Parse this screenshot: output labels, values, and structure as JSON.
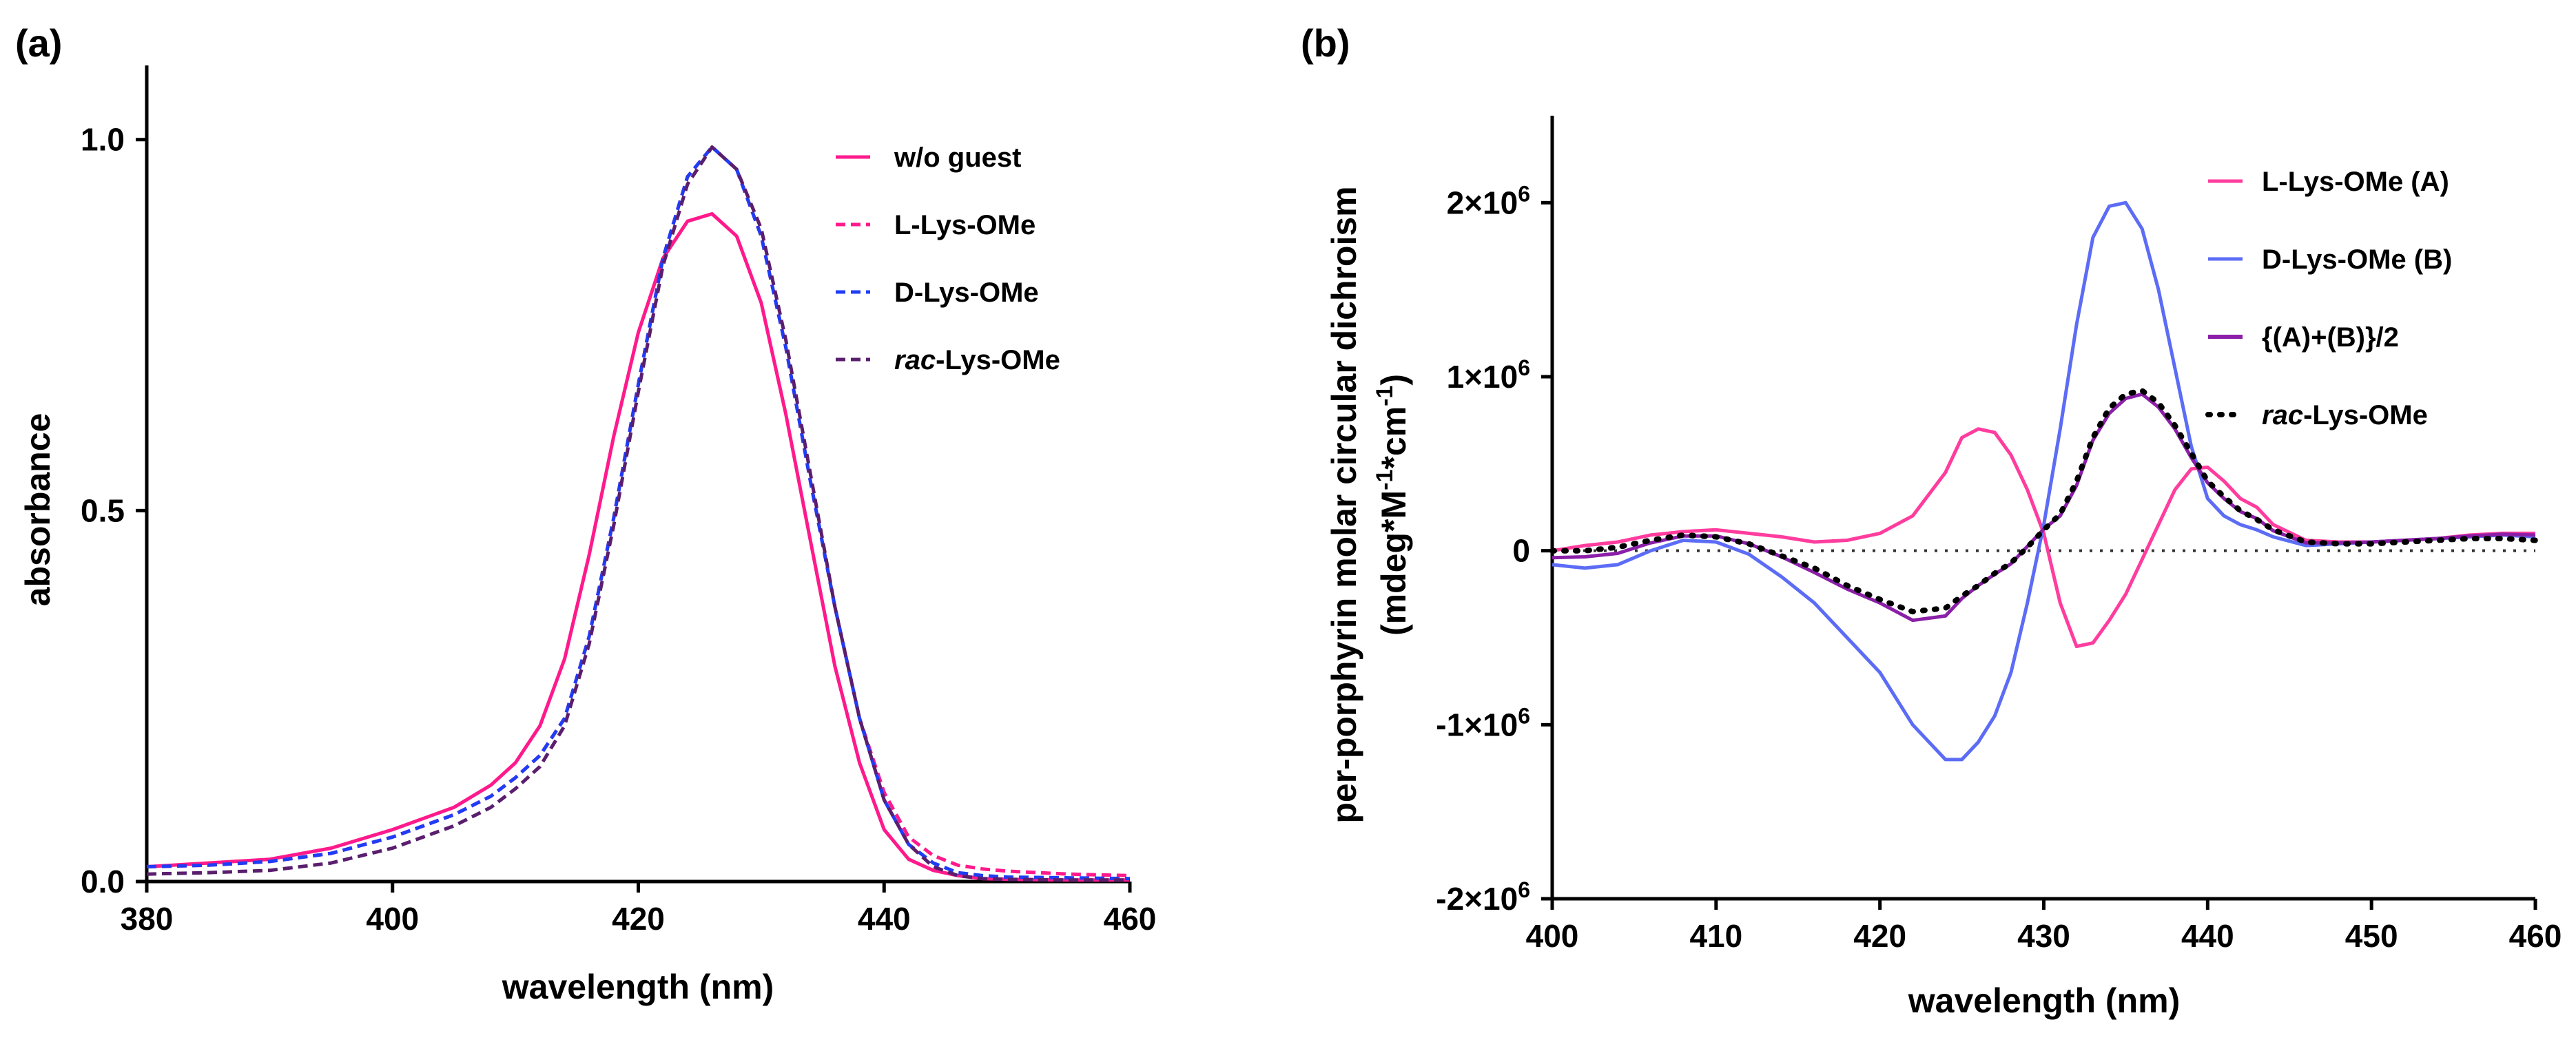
{
  "chart_data": [
    {
      "type": "line",
      "panel_label": "(a)",
      "xlabel": "wavelength (nm)",
      "ylabel": "absorbance",
      "xlim": [
        380,
        460
      ],
      "ylim": [
        0,
        1.1
      ],
      "x_ticks": [
        380,
        400,
        420,
        440,
        460
      ],
      "x_tick_labels": [
        "380",
        "400",
        "420",
        "440",
        "460"
      ],
      "y_ticks": [
        0,
        0.5,
        1.0
      ],
      "y_tick_labels": [
        "0.0",
        "0.5",
        "1.0"
      ],
      "grid": false,
      "legend_position": "top-right",
      "series": [
        {
          "name": "w/o guest",
          "color": "#ff1a8c",
          "dash": "solid",
          "x": [
            380,
            385,
            390,
            395,
            400,
            405,
            408,
            410,
            412,
            414,
            416,
            418,
            420,
            422,
            424,
            426,
            428,
            430,
            432,
            434,
            436,
            438,
            440,
            442,
            444,
            446,
            448,
            450,
            455,
            460
          ],
          "y": [
            0.02,
            0.025,
            0.03,
            0.045,
            0.07,
            0.1,
            0.13,
            0.16,
            0.21,
            0.3,
            0.44,
            0.6,
            0.74,
            0.84,
            0.89,
            0.9,
            0.87,
            0.78,
            0.63,
            0.46,
            0.29,
            0.16,
            0.07,
            0.03,
            0.015,
            0.008,
            0.004,
            0.003,
            0.002,
            0.002
          ]
        },
        {
          "name": "L-Lys-OMe",
          "color": "#ff1a8c",
          "dash": "dashed",
          "x": [
            380,
            385,
            390,
            395,
            400,
            405,
            408,
            410,
            412,
            414,
            416,
            418,
            420,
            422,
            424,
            426,
            428,
            430,
            432,
            434,
            436,
            438,
            440,
            442,
            444,
            446,
            448,
            450,
            455,
            460
          ],
          "y": [
            0.02,
            0.022,
            0.027,
            0.038,
            0.06,
            0.09,
            0.115,
            0.14,
            0.17,
            0.22,
            0.33,
            0.49,
            0.67,
            0.84,
            0.95,
            0.99,
            0.96,
            0.87,
            0.72,
            0.54,
            0.37,
            0.22,
            0.12,
            0.06,
            0.035,
            0.022,
            0.017,
            0.014,
            0.01,
            0.008
          ]
        },
        {
          "name": "D-Lys-OMe",
          "color": "#1f3df5",
          "dash": "dashed",
          "x": [
            380,
            385,
            390,
            395,
            400,
            405,
            408,
            410,
            412,
            414,
            416,
            418,
            420,
            422,
            424,
            426,
            428,
            430,
            432,
            434,
            436,
            438,
            440,
            442,
            444,
            446,
            448,
            450,
            455,
            460
          ],
          "y": [
            0.02,
            0.022,
            0.027,
            0.038,
            0.06,
            0.09,
            0.115,
            0.14,
            0.17,
            0.22,
            0.33,
            0.49,
            0.67,
            0.84,
            0.95,
            0.99,
            0.96,
            0.87,
            0.72,
            0.54,
            0.37,
            0.22,
            0.11,
            0.05,
            0.025,
            0.012,
            0.008,
            0.006,
            0.005,
            0.004
          ]
        },
        {
          "name": "rac-Lys-OMe",
          "name_prefix_italic": "rac",
          "name_suffix": "-Lys-OMe",
          "color": "#5a1e6e",
          "dash": "dashed",
          "x": [
            380,
            385,
            390,
            395,
            400,
            405,
            408,
            410,
            412,
            414,
            416,
            418,
            420,
            422,
            424,
            426,
            428,
            430,
            432,
            434,
            436,
            438,
            440,
            442,
            444,
            446,
            448,
            450,
            455,
            460
          ],
          "y": [
            0.01,
            0.012,
            0.015,
            0.025,
            0.045,
            0.075,
            0.1,
            0.125,
            0.155,
            0.21,
            0.32,
            0.48,
            0.66,
            0.83,
            0.94,
            0.99,
            0.96,
            0.88,
            0.73,
            0.55,
            0.37,
            0.22,
            0.11,
            0.05,
            0.02,
            0.008,
            0.004,
            0.003,
            0.002,
            0.002
          ]
        }
      ]
    },
    {
      "type": "line",
      "panel_label": "(b)",
      "xlabel": "wavelength (nm)",
      "ylabel_line1": "per-porphyrin molar circular dichroism",
      "ylabel_line2_parts": [
        "(mdeg*M",
        "-1",
        "*cm",
        "-1",
        ")"
      ],
      "xlim": [
        400,
        460
      ],
      "ylim": [
        -2000000,
        2500000
      ],
      "x_ticks": [
        400,
        410,
        420,
        430,
        440,
        450,
        460
      ],
      "x_tick_labels": [
        "400",
        "410",
        "420",
        "430",
        "440",
        "450",
        "460"
      ],
      "y_ticks": [
        -2000000,
        -1000000,
        0,
        1000000,
        2000000
      ],
      "y_tick_labels": [
        {
          "base": "-2×10",
          "exp": "6"
        },
        {
          "base": "-1×10",
          "exp": "6"
        },
        {
          "base": "0",
          "exp": ""
        },
        {
          "base": "1×10",
          "exp": "6"
        },
        {
          "base": "2×10",
          "exp": "6"
        }
      ],
      "grid": false,
      "zero_reference_line": "dotted",
      "legend_position": "top-right",
      "series": [
        {
          "name": "L-Lys-OMe (A)",
          "color": "#ff3d9e",
          "dash": "solid",
          "x": [
            400,
            402,
            404,
            406,
            408,
            410,
            412,
            414,
            416,
            418,
            420,
            422,
            424,
            425,
            426,
            427,
            428,
            429,
            430,
            431,
            432,
            433,
            434,
            435,
            436,
            437,
            438,
            439,
            440,
            441,
            442,
            443,
            444,
            446,
            448,
            450,
            452,
            454,
            456,
            458,
            460
          ],
          "y": [
            0,
            30000,
            50000,
            90000,
            110000,
            120000,
            100000,
            80000,
            50000,
            60000,
            100000,
            200000,
            450000,
            650000,
            700000,
            680000,
            550000,
            350000,
            100000,
            -300000,
            -550000,
            -530000,
            -400000,
            -250000,
            -50000,
            150000,
            350000,
            470000,
            480000,
            400000,
            300000,
            250000,
            150000,
            60000,
            50000,
            50000,
            60000,
            70000,
            90000,
            100000,
            100000
          ]
        },
        {
          "name": "D-Lys-OMe (B)",
          "color": "#5c6cf5",
          "dash": "solid",
          "x": [
            400,
            402,
            404,
            406,
            408,
            410,
            412,
            414,
            416,
            418,
            420,
            422,
            424,
            425,
            426,
            427,
            428,
            429,
            430,
            431,
            432,
            433,
            434,
            435,
            436,
            437,
            438,
            439,
            440,
            441,
            442,
            443,
            444,
            446,
            448,
            450,
            452,
            454,
            456,
            458,
            460
          ],
          "y": [
            -80000,
            -100000,
            -80000,
            0,
            60000,
            50000,
            -20000,
            -150000,
            -300000,
            -500000,
            -700000,
            -1000000,
            -1200000,
            -1200000,
            -1100000,
            -950000,
            -700000,
            -300000,
            150000,
            700000,
            1300000,
            1800000,
            1980000,
            2000000,
            1850000,
            1500000,
            1050000,
            600000,
            300000,
            200000,
            150000,
            120000,
            80000,
            30000,
            40000,
            50000,
            60000,
            70000,
            80000,
            90000,
            80000
          ]
        },
        {
          "name": "{(A)+(B)}/2",
          "color": "#8b1fa8",
          "dash": "solid",
          "x": [
            400,
            402,
            404,
            406,
            408,
            410,
            412,
            414,
            416,
            418,
            420,
            422,
            424,
            425,
            426,
            427,
            428,
            429,
            430,
            431,
            432,
            433,
            434,
            435,
            436,
            437,
            438,
            439,
            440,
            441,
            442,
            443,
            444,
            446,
            448,
            450,
            452,
            454,
            456,
            458,
            460
          ],
          "y": [
            -40000,
            -35000,
            -15000,
            45000,
            85000,
            85000,
            40000,
            -35000,
            -125000,
            -220000,
            -300000,
            -400000,
            -375000,
            -275000,
            -200000,
            -135000,
            -75000,
            25000,
            125000,
            200000,
            375000,
            635000,
            790000,
            875000,
            900000,
            825000,
            700000,
            535000,
            390000,
            300000,
            225000,
            185000,
            115000,
            45000,
            45000,
            50000,
            60000,
            70000,
            85000,
            95000,
            90000
          ]
        },
        {
          "name": "rac-Lys-OMe",
          "name_prefix_italic": "rac",
          "name_suffix": "-Lys-OMe",
          "color": "#000000",
          "dash": "dotted",
          "x": [
            400,
            402,
            404,
            406,
            408,
            410,
            412,
            414,
            416,
            418,
            420,
            422,
            424,
            425,
            426,
            427,
            428,
            429,
            430,
            431,
            432,
            433,
            434,
            435,
            436,
            437,
            438,
            439,
            440,
            441,
            442,
            443,
            444,
            446,
            448,
            450,
            452,
            454,
            456,
            458,
            460
          ],
          "y": [
            0,
            0,
            20000,
            60000,
            90000,
            80000,
            40000,
            -30000,
            -100000,
            -200000,
            -280000,
            -350000,
            -330000,
            -260000,
            -200000,
            -130000,
            -70000,
            20000,
            120000,
            210000,
            400000,
            650000,
            820000,
            900000,
            920000,
            850000,
            720000,
            560000,
            400000,
            310000,
            230000,
            180000,
            120000,
            50000,
            40000,
            40000,
            50000,
            60000,
            70000,
            70000,
            60000
          ]
        }
      ]
    }
  ]
}
